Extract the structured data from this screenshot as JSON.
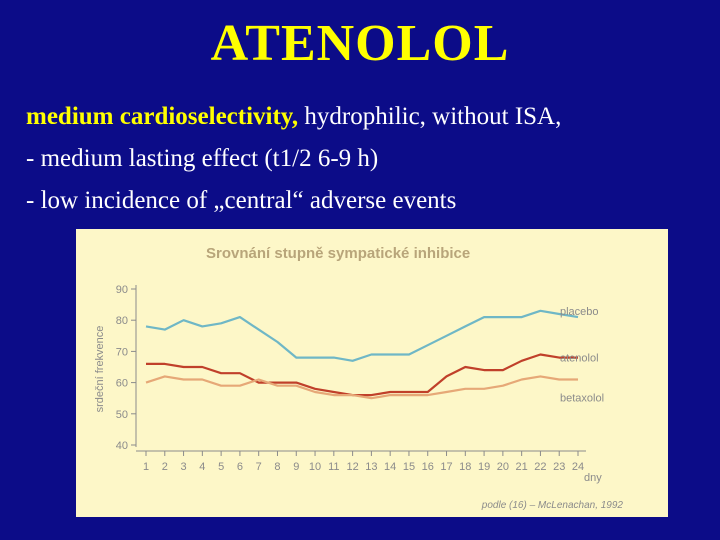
{
  "slide": {
    "title": "ATENOLOL",
    "line1_highlight": "medium cardioselectivity,",
    "line1_rest": " hydrophilic, without ISA,",
    "line2": "- medium lasting effect (t1/2   6-9 h)",
    "line3": "- low incidence of „central“ adverse events"
  },
  "colors": {
    "background": "#0c0c88",
    "title": "#ffff00",
    "text": "#ffffff",
    "figure_bg": "#fdf7c8",
    "placebo": "#6fb7c6",
    "atenolol": "#c0402a",
    "betaxolol": "#e6a877",
    "axis": "#8b8b8b",
    "fig_title": "#b8a57a"
  },
  "chart_data": {
    "type": "line",
    "title": "Srovnání stupně sympatické inhibice",
    "ylabel": "srdeční frekvence",
    "xlabel": "dny",
    "ylim": [
      40,
      90
    ],
    "yticks": [
      40,
      50,
      60,
      70,
      80,
      90
    ],
    "x": [
      1,
      2,
      3,
      4,
      5,
      6,
      7,
      8,
      9,
      10,
      11,
      12,
      13,
      14,
      15,
      16,
      17,
      18,
      19,
      20,
      21,
      22,
      23,
      24
    ],
    "x_labels": [
      "1",
      "2",
      "3",
      "4",
      "5",
      "6",
      "7",
      "8",
      "9",
      "10",
      "11",
      "12",
      "13",
      "14",
      "15",
      "16",
      "17",
      "18",
      "19",
      "20",
      "21",
      "22",
      "23",
      "24"
    ],
    "source": "podle (16) – McLenachan, 1992",
    "series": [
      {
        "name": "placebo",
        "values": [
          78,
          77,
          80,
          78,
          79,
          81,
          77,
          73,
          68,
          68,
          68,
          67,
          69,
          69,
          69,
          72,
          75,
          78,
          81,
          81,
          81,
          83,
          82,
          81
        ]
      },
      {
        "name": "atenolol",
        "values": [
          66,
          66,
          65,
          65,
          63,
          63,
          60,
          60,
          60,
          58,
          57,
          56,
          56,
          57,
          57,
          57,
          62,
          65,
          64,
          64,
          67,
          69,
          68,
          68
        ]
      },
      {
        "name": "betaxolol",
        "values": [
          60,
          62,
          61,
          61,
          59,
          59,
          61,
          59,
          59,
          57,
          56,
          56,
          55,
          56,
          56,
          56,
          57,
          58,
          58,
          59,
          61,
          62,
          61,
          61
        ]
      }
    ]
  }
}
